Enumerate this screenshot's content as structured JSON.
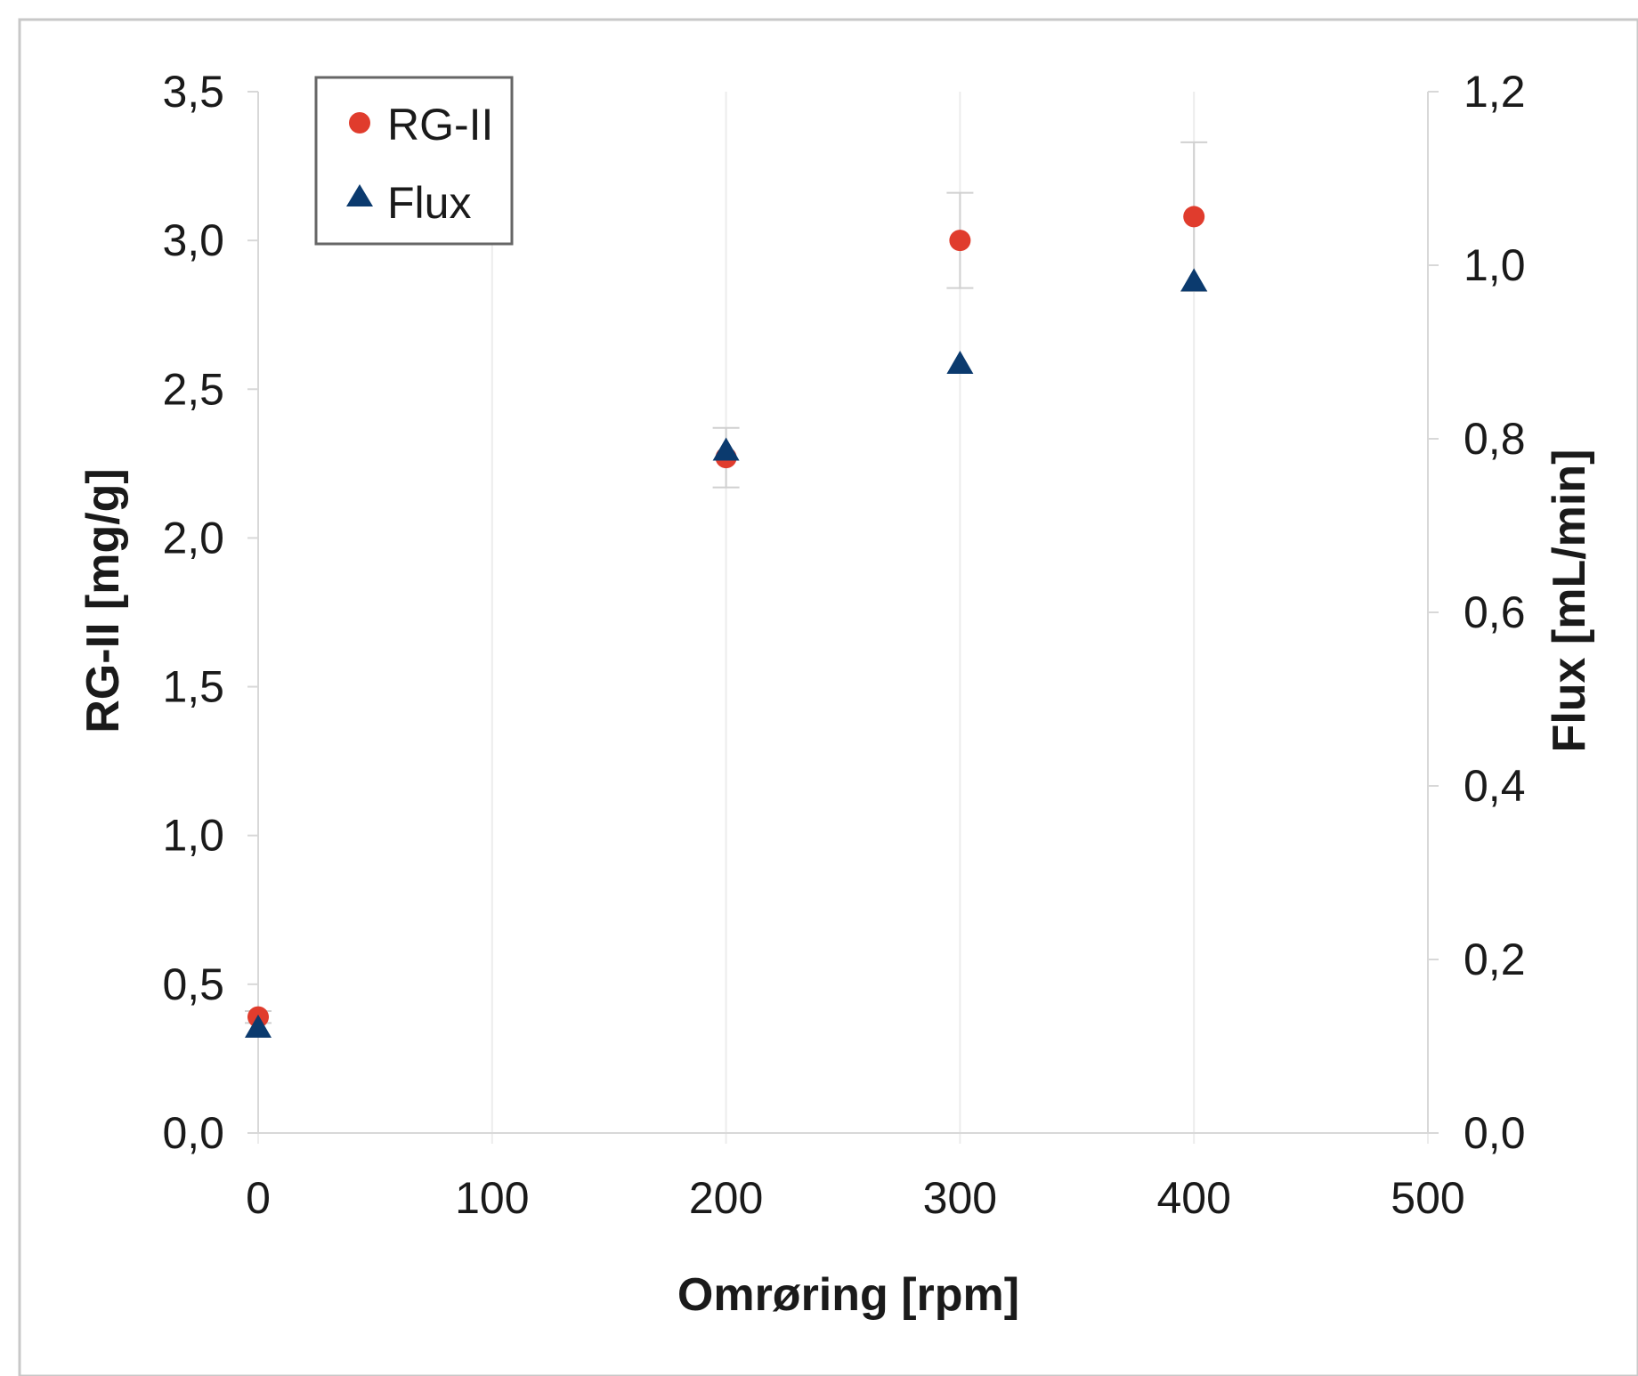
{
  "chart_data": {
    "type": "scatter",
    "title": "",
    "xlabel": "Omrøring [rpm]",
    "ylabel": "RG-II [mg/g]",
    "y2label": "Flux [mL/min]",
    "xlim": [
      0,
      500
    ],
    "ylim": [
      0,
      3.5
    ],
    "y2lim": [
      0,
      1.2
    ],
    "xticks": [
      "0",
      "100",
      "200",
      "300",
      "400",
      "500"
    ],
    "yticks": [
      "0,0",
      "0,5",
      "1,0",
      "1,5",
      "2,0",
      "2,5",
      "3,0",
      "3,5"
    ],
    "y2ticks": [
      "0,0",
      "0,2",
      "0,4",
      "0,6",
      "0,8",
      "1,0",
      "1,2"
    ],
    "grid": true,
    "legend_position": "top-left",
    "series": [
      {
        "name": "RG-II",
        "axis": "left",
        "marker": "circle",
        "color": "#e03c2d",
        "x": [
          0,
          200,
          300,
          400
        ],
        "y": [
          0.39,
          2.27,
          3.0,
          3.08
        ],
        "error": [
          0.02,
          0.1,
          0.16,
          0.25
        ]
      },
      {
        "name": "Flux",
        "axis": "right",
        "marker": "triangle",
        "color": "#0b3a6e",
        "x": [
          0,
          200,
          300,
          400
        ],
        "y": [
          0.12,
          0.785,
          0.885,
          0.98
        ],
        "error": [
          0,
          0,
          0,
          0
        ]
      }
    ]
  }
}
